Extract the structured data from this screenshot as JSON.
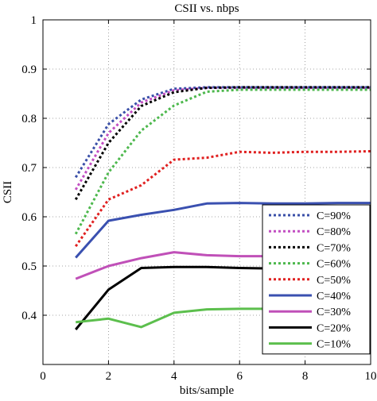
{
  "chart_data": {
    "type": "line",
    "title": "CSII vs. nbps",
    "xlabel": "bits/sample",
    "ylabel": "CSII",
    "xlim": [
      0,
      10
    ],
    "ylim": [
      0.3,
      1.0
    ],
    "xticks": [
      0,
      2,
      4,
      6,
      8,
      10
    ],
    "yticks": [
      0.3,
      0.4,
      0.5,
      0.6,
      0.7,
      0.8,
      0.9,
      1.0
    ],
    "xtick_labels": [
      "0",
      "2",
      "4",
      "6",
      "8",
      "10"
    ],
    "ytick_labels": [
      "",
      "0.4",
      "0.5",
      "0.6",
      "0.7",
      "0.8",
      "0.9",
      "1"
    ],
    "grid": true,
    "legend_position": "lower-right",
    "x": [
      1,
      2,
      3,
      4,
      5,
      6,
      7,
      8,
      9,
      10
    ],
    "series": [
      {
        "name": "C=90%",
        "color": "#3a4fa8",
        "style": "dotted",
        "values": [
          0.68,
          0.788,
          0.838,
          0.86,
          0.863,
          0.863,
          0.863,
          0.863,
          0.863,
          0.863
        ]
      },
      {
        "name": "C=80%",
        "color": "#c24fc2",
        "style": "dotted",
        "values": [
          0.655,
          0.77,
          0.832,
          0.857,
          0.862,
          0.862,
          0.862,
          0.862,
          0.862,
          0.862
        ]
      },
      {
        "name": "C=70%",
        "color": "#000000",
        "style": "dotted",
        "values": [
          0.635,
          0.75,
          0.825,
          0.853,
          0.862,
          0.863,
          0.863,
          0.863,
          0.863,
          0.863
        ]
      },
      {
        "name": "C=60%",
        "color": "#4db84d",
        "style": "dotted",
        "values": [
          0.565,
          0.69,
          0.775,
          0.826,
          0.854,
          0.858,
          0.858,
          0.858,
          0.858,
          0.858
        ]
      },
      {
        "name": "C=50%",
        "color": "#e02020",
        "style": "dotted",
        "values": [
          0.54,
          0.635,
          0.664,
          0.716,
          0.72,
          0.732,
          0.73,
          0.732,
          0.732,
          0.733
        ]
      },
      {
        "name": "C=40%",
        "color": "#3a50b0",
        "style": "solid",
        "values": [
          0.517,
          0.592,
          0.604,
          0.614,
          0.627,
          0.628,
          0.627,
          0.627,
          0.628,
          0.628
        ]
      },
      {
        "name": "C=30%",
        "color": "#c050b8",
        "style": "solid",
        "values": [
          0.474,
          0.5,
          0.516,
          0.528,
          0.522,
          0.52,
          0.52,
          0.52,
          0.52,
          0.521
        ]
      },
      {
        "name": "C=20%",
        "color": "#000000",
        "style": "solid",
        "values": [
          0.371,
          0.452,
          0.496,
          0.498,
          0.498,
          0.496,
          0.495,
          0.495,
          0.495,
          0.496
        ]
      },
      {
        "name": "C=10%",
        "color": "#5cbf4d",
        "style": "solid",
        "values": [
          0.386,
          0.393,
          0.376,
          0.405,
          0.412,
          0.413,
          0.413,
          0.413,
          0.413,
          0.413
        ]
      }
    ]
  }
}
